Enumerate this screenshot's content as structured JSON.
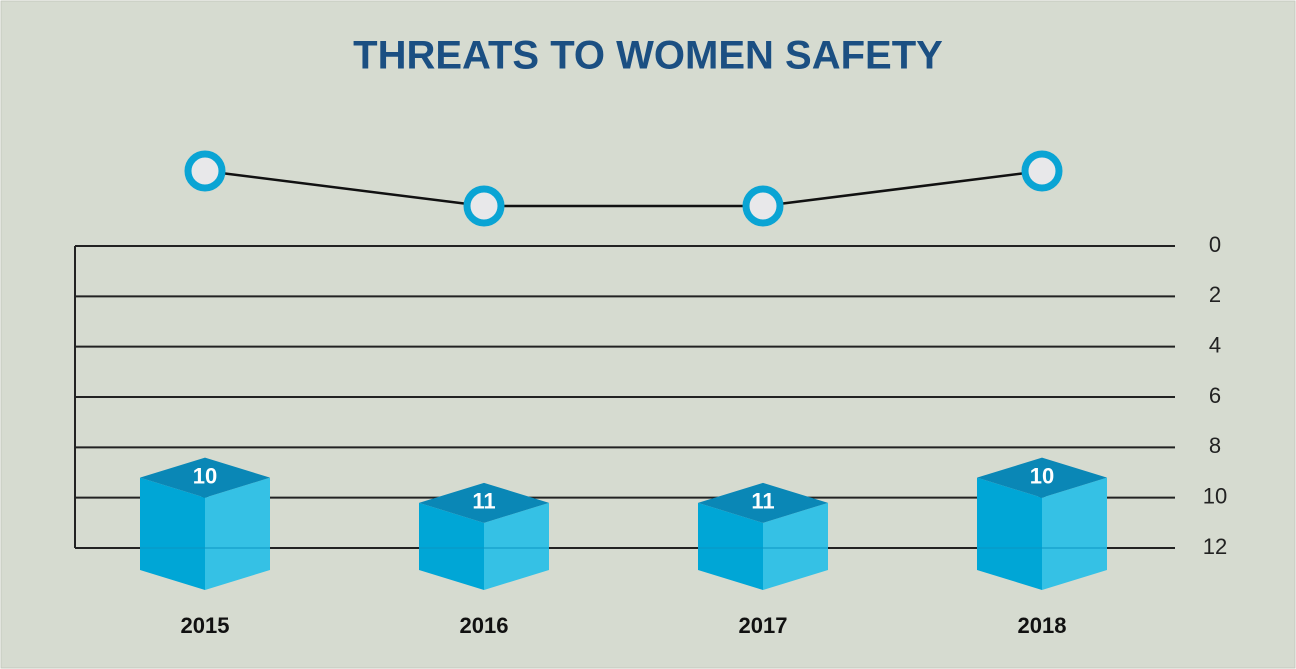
{
  "chart_data": {
    "type": "bar",
    "title": "THREATS TO WOMEN SAFETY",
    "categories": [
      "2015",
      "2016",
      "2017",
      "2018"
    ],
    "values": [
      10,
      11,
      11,
      10
    ],
    "ylim": [
      0,
      12
    ],
    "yticks": [
      0,
      2,
      4,
      6,
      8,
      10,
      12
    ],
    "y_inverted": true,
    "grid": true,
    "color": "#00a6d6",
    "line_color": "#111111",
    "marker_color": "#0aa4d4"
  }
}
